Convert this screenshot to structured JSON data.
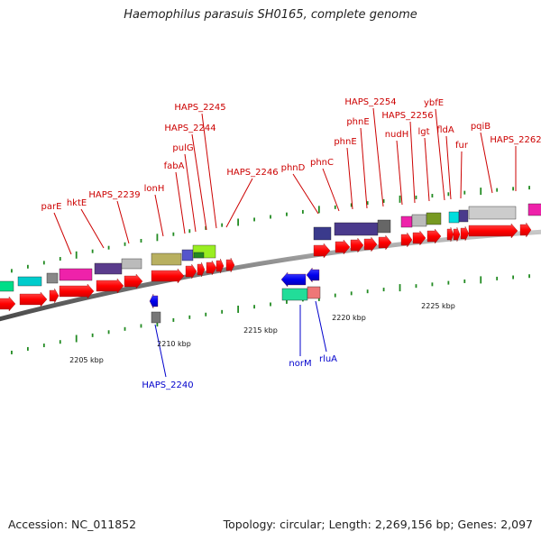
{
  "title": "Haemophilus parasuis SH0165, complete genome",
  "accession": "Accession: NC_011852",
  "topology": "Topology: circular; Length: 2,269,156 bp; Genes: 2,097",
  "scale_labels": [
    "2205 kbp",
    "2210 kbp",
    "2215 kbp",
    "2220 kbp",
    "2225 kbp"
  ],
  "gene_labels_top": [
    "parE",
    "hktE",
    "HAPS_2239",
    "lonH",
    "fabA",
    "pulG",
    "HAPS_2244",
    "HAPS_2245",
    "HAPS_2246",
    "phnD",
    "phnC",
    "phnE",
    "phnE",
    "HAPS_2254",
    "nudH",
    "HAPS_2256",
    "lgt",
    "ybfE",
    "fldA",
    "fur",
    "pqiB",
    "HAPS_2262"
  ],
  "gene_labels_bottom": [
    "HAPS_2240",
    "norM",
    "rluA"
  ],
  "colors": {
    "forward_label": "#cc0000",
    "reverse_label": "#0000cc",
    "forward_arrow": "#ff0000",
    "reverse_arrow": "#0000ee",
    "backbone": "#8a8a8a",
    "tick": "#228b22"
  }
}
